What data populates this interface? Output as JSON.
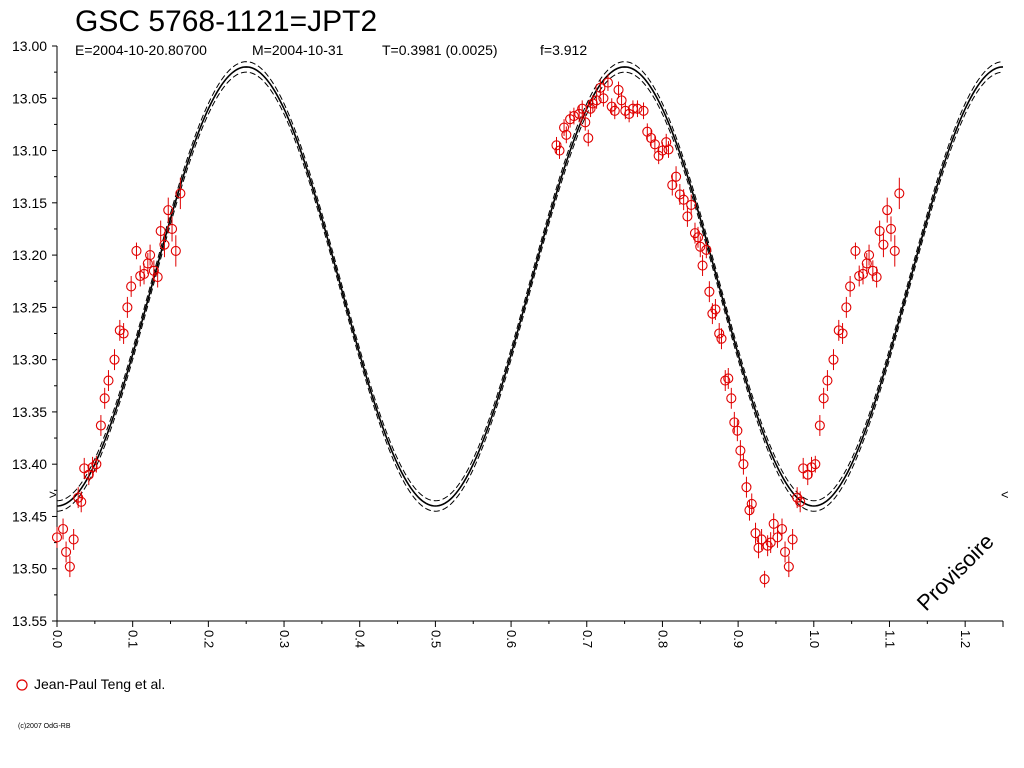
{
  "title": "GSC 5768-1121=JPT2",
  "subtitle": {
    "epoch": "E=2004-10-20.80700",
    "median": "M=2004-10-31",
    "period": "T=0.3981 (0.0025)",
    "frequency": "f=3.912"
  },
  "watermark": "Provisoire",
  "copyright": "(c)2007 OdG-RB",
  "legend": {
    "label": "Jean-Paul Teng et al."
  },
  "colors": {
    "data": "#e00000",
    "model": "#000000",
    "axis": "#000000"
  },
  "markers": {
    "left": ">",
    "right": "<",
    "value": 13.435
  },
  "chart_data": {
    "type": "scatter",
    "xlabel": "",
    "ylabel": "",
    "xlim": [
      0.0,
      1.25
    ],
    "ylim": [
      13.55,
      13.0
    ],
    "y_inverted": true,
    "grid": false,
    "legend_position": "bottom-left",
    "x_ticks": [
      "0.0",
      "0.1",
      "0.2",
      "0.3",
      "0.4",
      "0.5",
      "0.6",
      "0.7",
      "0.8",
      "0.9",
      "1.0",
      "1.1",
      "1.2"
    ],
    "y_ticks": [
      "13.00",
      "13.05",
      "13.10",
      "13.15",
      "13.20",
      "13.25",
      "13.30",
      "13.35",
      "13.40",
      "13.45",
      "13.50",
      "13.55"
    ],
    "model": {
      "type": "line",
      "description_values": {
        "mean": 13.23,
        "amplitude": 0.21,
        "cycles_per_phase": 2,
        "uncertainty": 0.005
      },
      "max_brightness": 13.02,
      "min_brightness": 13.44
    },
    "series": [
      {
        "name": "Jean-Paul Teng et al.",
        "points": [
          [
            0.0,
            13.47,
            0.01
          ],
          [
            0.008,
            13.462,
            0.01
          ],
          [
            0.012,
            13.484,
            0.01
          ],
          [
            0.017,
            13.498,
            0.01
          ],
          [
            0.022,
            13.472,
            0.01
          ],
          [
            0.028,
            13.432,
            0.01
          ],
          [
            0.032,
            13.436,
            0.01
          ],
          [
            0.036,
            13.404,
            0.01
          ],
          [
            0.042,
            13.41,
            0.01
          ],
          [
            0.047,
            13.403,
            0.01
          ],
          [
            0.052,
            13.4,
            0.008
          ],
          [
            0.058,
            13.363,
            0.01
          ],
          [
            0.063,
            13.337,
            0.01
          ],
          [
            0.068,
            13.32,
            0.01
          ],
          [
            0.076,
            13.3,
            0.01
          ],
          [
            0.083,
            13.272,
            0.01
          ],
          [
            0.088,
            13.275,
            0.01
          ],
          [
            0.093,
            13.25,
            0.01
          ],
          [
            0.098,
            13.23,
            0.01
          ],
          [
            0.105,
            13.196,
            0.008
          ],
          [
            0.11,
            13.22,
            0.01
          ],
          [
            0.115,
            13.218,
            0.01
          ],
          [
            0.12,
            13.208,
            0.01
          ],
          [
            0.123,
            13.2,
            0.01
          ],
          [
            0.128,
            13.215,
            0.01
          ],
          [
            0.133,
            13.221,
            0.01
          ],
          [
            0.137,
            13.177,
            0.01
          ],
          [
            0.142,
            13.19,
            0.012
          ],
          [
            0.147,
            13.157,
            0.012
          ],
          [
            0.152,
            13.175,
            0.012
          ],
          [
            0.157,
            13.196,
            0.015
          ],
          [
            0.163,
            13.141,
            0.015
          ],
          [
            0.66,
            13.095,
            0.008
          ],
          [
            0.664,
            13.1,
            0.008
          ],
          [
            0.67,
            13.078,
            0.008
          ],
          [
            0.673,
            13.085,
            0.008
          ],
          [
            0.678,
            13.07,
            0.008
          ],
          [
            0.683,
            13.067,
            0.008
          ],
          [
            0.69,
            13.065,
            0.008
          ],
          [
            0.694,
            13.06,
            0.008
          ],
          [
            0.698,
            13.073,
            0.008
          ],
          [
            0.702,
            13.088,
            0.008
          ],
          [
            0.705,
            13.06,
            0.008
          ],
          [
            0.708,
            13.055,
            0.008
          ],
          [
            0.713,
            13.052,
            0.008
          ],
          [
            0.718,
            13.04,
            0.008
          ],
          [
            0.722,
            13.05,
            0.008
          ],
          [
            0.728,
            13.035,
            0.008
          ],
          [
            0.733,
            13.058,
            0.008
          ],
          [
            0.737,
            13.062,
            0.008
          ],
          [
            0.742,
            13.042,
            0.008
          ],
          [
            0.746,
            13.052,
            0.008
          ],
          [
            0.751,
            13.062,
            0.008
          ],
          [
            0.756,
            13.065,
            0.008
          ],
          [
            0.761,
            13.06,
            0.008
          ],
          [
            0.767,
            13.06,
            0.008
          ],
          [
            0.775,
            13.062,
            0.008
          ],
          [
            0.78,
            13.082,
            0.008
          ],
          [
            0.785,
            13.088,
            0.008
          ],
          [
            0.79,
            13.094,
            0.008
          ],
          [
            0.795,
            13.105,
            0.008
          ],
          [
            0.8,
            13.1,
            0.008
          ],
          [
            0.805,
            13.092,
            0.008
          ],
          [
            0.808,
            13.099,
            0.008
          ],
          [
            0.813,
            13.133,
            0.01
          ],
          [
            0.818,
            13.125,
            0.01
          ],
          [
            0.823,
            13.142,
            0.01
          ],
          [
            0.828,
            13.147,
            0.01
          ],
          [
            0.833,
            13.163,
            0.01
          ],
          [
            0.838,
            13.152,
            0.01
          ],
          [
            0.843,
            13.179,
            0.01
          ],
          [
            0.847,
            13.183,
            0.01
          ],
          [
            0.85,
            13.192,
            0.01
          ],
          [
            0.853,
            13.21,
            0.01
          ],
          [
            0.858,
            13.195,
            0.008
          ],
          [
            0.862,
            13.235,
            0.01
          ],
          [
            0.866,
            13.256,
            0.01
          ],
          [
            0.87,
            13.252,
            0.01
          ],
          [
            0.875,
            13.275,
            0.01
          ],
          [
            0.878,
            13.28,
            0.01
          ],
          [
            0.883,
            13.32,
            0.01
          ],
          [
            0.887,
            13.318,
            0.01
          ],
          [
            0.891,
            13.337,
            0.01
          ],
          [
            0.895,
            13.36,
            0.01
          ],
          [
            0.899,
            13.368,
            0.01
          ],
          [
            0.903,
            13.387,
            0.01
          ],
          [
            0.907,
            13.4,
            0.01
          ],
          [
            0.911,
            13.422,
            0.01
          ],
          [
            0.915,
            13.444,
            0.01
          ],
          [
            0.918,
            13.438,
            0.01
          ],
          [
            0.923,
            13.466,
            0.01
          ],
          [
            0.927,
            13.48,
            0.01
          ],
          [
            0.931,
            13.472,
            0.01
          ],
          [
            0.935,
            13.51,
            0.008
          ],
          [
            0.939,
            13.478,
            0.01
          ],
          [
            0.943,
            13.475,
            0.01
          ],
          [
            0.947,
            13.457,
            0.01
          ],
          [
            0.952,
            13.47,
            0.01
          ],
          [
            0.958,
            13.462,
            0.01
          ],
          [
            0.962,
            13.484,
            0.01
          ],
          [
            0.967,
            13.498,
            0.01
          ],
          [
            0.972,
            13.472,
            0.01
          ],
          [
            0.978,
            13.432,
            0.01
          ],
          [
            0.982,
            13.436,
            0.01
          ],
          [
            0.986,
            13.404,
            0.01
          ],
          [
            0.992,
            13.41,
            0.01
          ],
          [
            0.997,
            13.403,
            0.01
          ],
          [
            1.002,
            13.4,
            0.008
          ],
          [
            1.008,
            13.363,
            0.01
          ],
          [
            1.013,
            13.337,
            0.01
          ],
          [
            1.018,
            13.32,
            0.01
          ],
          [
            1.026,
            13.3,
            0.01
          ],
          [
            1.033,
            13.272,
            0.01
          ],
          [
            1.038,
            13.275,
            0.01
          ],
          [
            1.043,
            13.25,
            0.01
          ],
          [
            1.048,
            13.23,
            0.01
          ],
          [
            1.055,
            13.196,
            0.008
          ],
          [
            1.06,
            13.22,
            0.01
          ],
          [
            1.065,
            13.218,
            0.01
          ],
          [
            1.07,
            13.208,
            0.01
          ],
          [
            1.073,
            13.2,
            0.01
          ],
          [
            1.078,
            13.215,
            0.01
          ],
          [
            1.083,
            13.221,
            0.01
          ],
          [
            1.087,
            13.177,
            0.01
          ],
          [
            1.092,
            13.19,
            0.012
          ],
          [
            1.097,
            13.157,
            0.012
          ],
          [
            1.102,
            13.175,
            0.012
          ],
          [
            1.107,
            13.196,
            0.015
          ],
          [
            1.113,
            13.141,
            0.015
          ]
        ]
      }
    ]
  }
}
